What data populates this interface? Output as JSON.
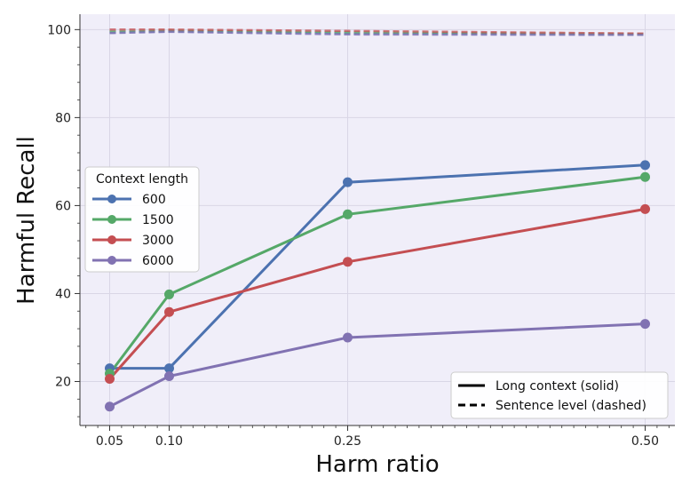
{
  "chart_data": {
    "type": "line",
    "title": "",
    "xlabel": "Harm ratio",
    "ylabel": "Harmful Recall",
    "x": [
      0.05,
      0.1,
      0.25,
      0.5
    ],
    "x_tick_labels": [
      "0.05",
      "0.10",
      "0.25",
      "0.50"
    ],
    "xlim": [
      0.025,
      0.525
    ],
    "ylim": [
      10,
      103.5
    ],
    "y_ticks": [
      20,
      40,
      60,
      80,
      100
    ],
    "y_tick_labels": [
      "20",
      "40",
      "60",
      "80",
      "100"
    ],
    "grid": true,
    "series": [
      {
        "name": "600",
        "color": "#4c72b0",
        "style": "solid",
        "values": [
          23.0,
          23.0,
          65.3,
          69.2
        ]
      },
      {
        "name": "1500",
        "color": "#55a868",
        "style": "solid",
        "values": [
          21.8,
          39.8,
          58.0,
          66.5
        ]
      },
      {
        "name": "3000",
        "color": "#c44e52",
        "style": "solid",
        "values": [
          20.6,
          35.8,
          47.2,
          59.2
        ]
      },
      {
        "name": "6000",
        "color": "#8172b2",
        "style": "solid",
        "values": [
          14.3,
          21.2,
          30.0,
          33.1
        ]
      },
      {
        "name": "600 (sentence level)",
        "color": "#4c72b0",
        "style": "dashed",
        "values": [
          99.3,
          99.6,
          99.1,
          98.9
        ]
      },
      {
        "name": "1500 (sentence level)",
        "color": "#55a868",
        "style": "dashed",
        "values": [
          99.6,
          99.8,
          99.4,
          99.0
        ]
      },
      {
        "name": "3000 (sentence level)",
        "color": "#c44e52",
        "style": "dashed",
        "values": [
          100.0,
          100.0,
          99.7,
          99.1
        ]
      },
      {
        "name": "6000 (sentence level)",
        "color": "#8172b2",
        "style": "dashed",
        "values": [
          99.2,
          99.5,
          98.9,
          98.8
        ]
      }
    ],
    "legend_series": {
      "title": "Context length",
      "entries": [
        "600",
        "1500",
        "3000",
        "6000"
      ],
      "placement": "center-left"
    },
    "legend_style": {
      "entries": [
        "Long context (solid)",
        "Sentence level (dashed)"
      ],
      "placement": "bottom-right"
    }
  }
}
